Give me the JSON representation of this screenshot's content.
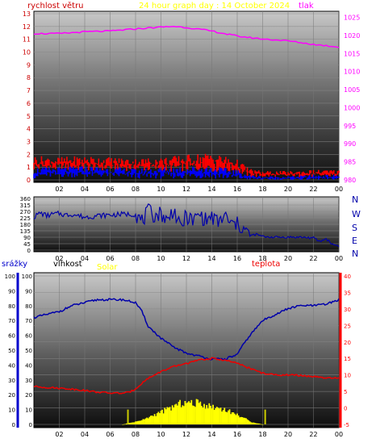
{
  "panels": {
    "top": {
      "title": "24 hour graph day : 14 October 2024",
      "left_label": "rychlost větru",
      "right_label": "tlak"
    },
    "middle": {
      "compass": [
        "N",
        "W",
        "S",
        "E",
        "N"
      ]
    },
    "bottom": {
      "label_rain": "srážky",
      "label_humidity": "vlhkost",
      "label_solar": "Solar",
      "label_temp": "teplota"
    }
  },
  "colors": {
    "wind_left_axis": "#cc0000",
    "pressure": "#ff00ff",
    "gust": "#ff0000",
    "wind": "#0000ff",
    "direction": "#0000aa",
    "humidity": "#0000aa",
    "temperature": "#ee0000",
    "solar": "#ffff00",
    "rain_axis": "#0000cc",
    "humidity_axis": "#000000",
    "temp_axis": "#ff0000"
  },
  "chart_data": [
    {
      "type": "line",
      "name": "wind-pressure",
      "x_ticks": [
        "02",
        "04",
        "06",
        "08",
        "10",
        "12",
        "14",
        "16",
        "18",
        "20",
        "22",
        "00"
      ],
      "left_axis": {
        "ticks": [
          0,
          1,
          2,
          3,
          4,
          5,
          6,
          7,
          8,
          9,
          10,
          11,
          12,
          13
        ],
        "ylim": [
          0,
          13
        ]
      },
      "right_axis": {
        "ticks": [
          980,
          985,
          990,
          995,
          1000,
          1005,
          1010,
          1015,
          1020,
          1025
        ],
        "ylim": [
          980,
          1026
        ]
      },
      "series": [
        {
          "name": "tlak",
          "axis": "right",
          "x": [
            0,
            2,
            4,
            6,
            8,
            10,
            11,
            12,
            14,
            16,
            18,
            20,
            22,
            24
          ],
          "y": [
            1020.5,
            1020.5,
            1021.0,
            1021.2,
            1021.8,
            1022.3,
            1022.5,
            1022.2,
            1021.2,
            1019.8,
            1019.0,
            1018.5,
            1017.5,
            1016.8
          ]
        },
        {
          "name": "gust",
          "axis": "left",
          "x": [
            0,
            2,
            4,
            6,
            8,
            10,
            12,
            14,
            16,
            17,
            18,
            20,
            22,
            24
          ],
          "y_low": [
            0.7,
            0.7,
            0.7,
            0.7,
            0.7,
            0.6,
            0.6,
            0.6,
            0.5,
            0.2,
            0.2,
            0.2,
            0.2,
            0.2
          ],
          "y_high": [
            1.9,
            1.8,
            1.9,
            1.8,
            1.7,
            1.8,
            2.0,
            2.2,
            1.6,
            0.9,
            0.7,
            0.7,
            0.8,
            0.8
          ]
        },
        {
          "name": "wind",
          "axis": "left",
          "x": [
            0,
            2,
            4,
            6,
            8,
            10,
            12,
            14,
            16,
            17,
            18,
            20,
            22,
            24
          ],
          "y_low": [
            0.1,
            0.2,
            0.2,
            0.2,
            0.1,
            0.1,
            0.1,
            0.1,
            0.0,
            0.0,
            0.0,
            0.0,
            0.0,
            0.0
          ],
          "y_high": [
            1.0,
            1.0,
            1.1,
            1.0,
            0.9,
            1.0,
            1.1,
            1.1,
            0.8,
            0.4,
            0.3,
            0.3,
            0.4,
            0.4
          ]
        }
      ]
    },
    {
      "type": "line",
      "name": "wind-direction",
      "x_ticks": [
        "02",
        "04",
        "06",
        "08",
        "10",
        "12",
        "14",
        "16",
        "18",
        "20",
        "22",
        "00"
      ],
      "left_axis": {
        "ticks": [
          0,
          45,
          90,
          135,
          180,
          225,
          270,
          315,
          360
        ],
        "ylim": [
          0,
          360
        ]
      },
      "series": [
        {
          "name": "direction",
          "x": [
            0,
            0.5,
            1,
            1.5,
            2,
            2.5,
            3,
            4,
            5,
            6,
            7,
            8,
            8.5,
            9,
            9.5,
            10,
            10.5,
            11,
            11.5,
            12,
            12.5,
            13,
            13.5,
            14,
            14.5,
            15,
            15.5,
            16,
            16.5,
            17,
            17.5,
            18,
            19,
            20,
            21,
            22,
            22.5,
            23,
            23.5,
            24
          ],
          "y": [
            230,
            260,
            240,
            250,
            255,
            245,
            250,
            230,
            240,
            245,
            250,
            250,
            200,
            270,
            240,
            260,
            200,
            290,
            150,
            240,
            200,
            250,
            210,
            230,
            190,
            240,
            180,
            180,
            150,
            100,
            110,
            95,
            90,
            90,
            90,
            85,
            60,
            80,
            40,
            30
          ]
        }
      ]
    },
    {
      "type": "line",
      "name": "rain-humidity-solar-temperature",
      "x_ticks": [
        "02",
        "04",
        "06",
        "08",
        "10",
        "12",
        "14",
        "16",
        "18",
        "20",
        "22",
        "00"
      ],
      "rain_axis": {
        "ticks": [
          0,
          5,
          10,
          15,
          20,
          25,
          30,
          35,
          40,
          45,
          50,
          55,
          60,
          65,
          70,
          75,
          80,
          85,
          90,
          95,
          100
        ],
        "ylim": [
          0,
          100
        ]
      },
      "humidity_axis": {
        "ticks": [
          0,
          5,
          10,
          15,
          20,
          25,
          30,
          35,
          40,
          45,
          50,
          55,
          60,
          65,
          70,
          75,
          80,
          85,
          90,
          95,
          100
        ],
        "ylim": [
          0,
          100
        ]
      },
      "temp_axis": {
        "ticks": [
          -5,
          0,
          5,
          10,
          15,
          20,
          25,
          30,
          35,
          40
        ],
        "ylim": [
          -5,
          40
        ]
      },
      "series": [
        {
          "name": "vlhkost",
          "axis": "humidity",
          "x": [
            0,
            1,
            2,
            3,
            4,
            5,
            6,
            7,
            8,
            8.5,
            9,
            10,
            11,
            12,
            13,
            14,
            15,
            16,
            16.5,
            17,
            18,
            19,
            20,
            21,
            22,
            23,
            24
          ],
          "y": [
            72,
            74,
            76,
            80,
            82,
            84,
            84,
            84,
            82,
            76,
            66,
            58,
            52,
            48,
            46,
            44,
            44,
            47,
            54,
            60,
            70,
            74,
            78,
            80,
            80,
            81,
            84
          ]
        },
        {
          "name": "teplota",
          "axis": "temp",
          "x": [
            0,
            1,
            2,
            3,
            4,
            5,
            6,
            7,
            7.5,
            8,
            8.5,
            9,
            10,
            11,
            12,
            13,
            14,
            15,
            16,
            17,
            18,
            19,
            20,
            21,
            22,
            23,
            24
          ],
          "y": [
            6.5,
            6.2,
            6.0,
            5.7,
            5.3,
            4.8,
            4.5,
            4.5,
            4.7,
            5.8,
            7.5,
            9.0,
            11.0,
            12.5,
            13.5,
            14.5,
            15.0,
            14.5,
            13.5,
            12.0,
            10.5,
            10.0,
            10.0,
            9.8,
            9.5,
            9.0,
            9.0
          ]
        },
        {
          "name": "Solar",
          "axis": "rain",
          "x": [
            7,
            7.5,
            8,
            8.5,
            9,
            9.5,
            10,
            10.5,
            11,
            11.5,
            12,
            12.5,
            13,
            13.5,
            14,
            14.5,
            15,
            15.5,
            16,
            16.5,
            17,
            17.5,
            18
          ],
          "y": [
            0,
            1,
            2,
            3,
            5,
            7,
            9,
            11,
            13,
            15,
            16,
            15,
            16,
            14,
            13,
            12,
            11,
            9,
            7,
            5,
            2,
            1,
            0
          ]
        }
      ]
    }
  ]
}
